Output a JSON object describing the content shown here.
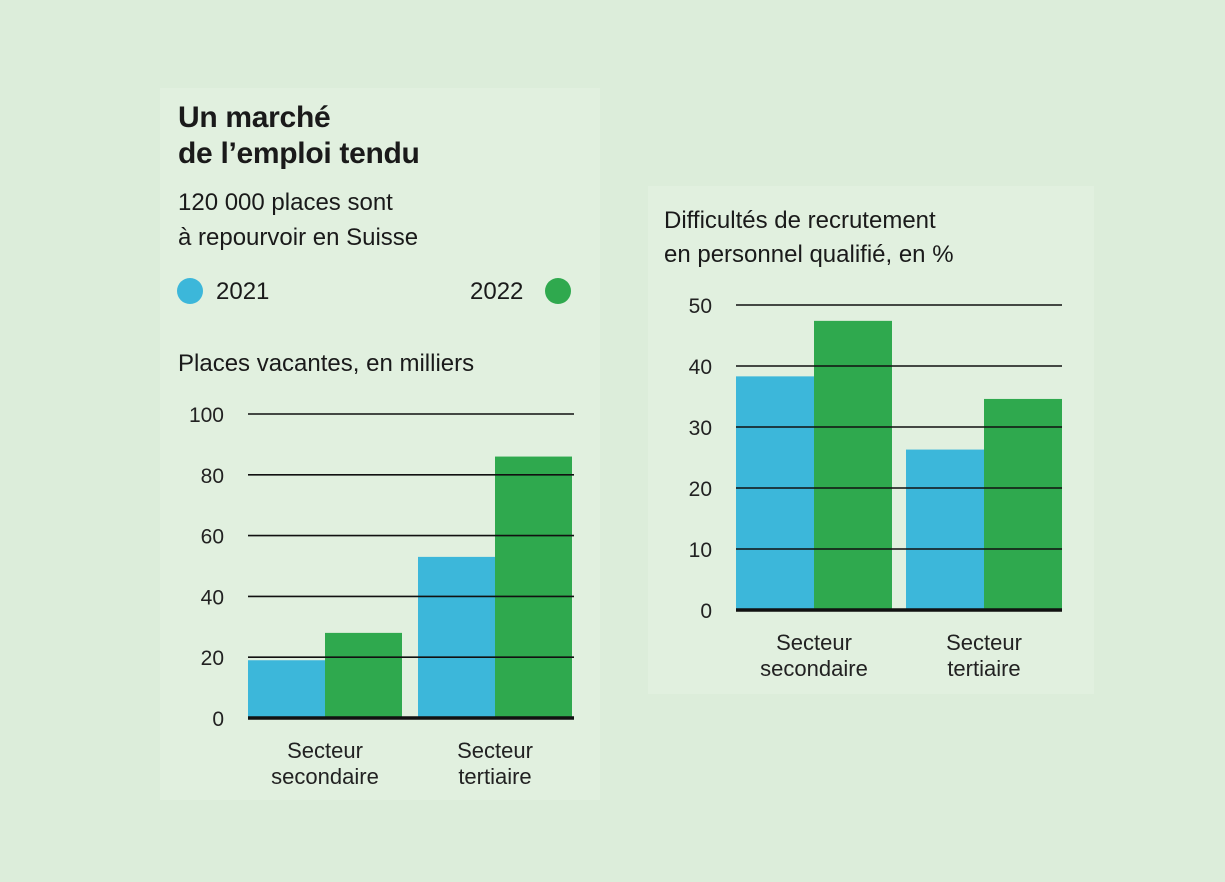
{
  "title": "Un marché de l’emploi tendu",
  "title_lines": [
    "Un marché",
    "de l’emploi tendu"
  ],
  "subtitle_lines": [
    "120 000 places sont",
    "à repourvoir en Suisse"
  ],
  "legend": [
    {
      "label": "2021",
      "color": "#3cb7da"
    },
    {
      "label": "2022",
      "color": "#2fa94e"
    }
  ],
  "chart_data": [
    {
      "type": "bar",
      "title": "Places vacantes, en milliers",
      "categories": [
        [
          "Secteur",
          "secondaire"
        ],
        [
          "Secteur",
          "tertiaire"
        ]
      ],
      "series": [
        {
          "name": "2021",
          "values": [
            19,
            53
          ],
          "color": "#3cb7da"
        },
        {
          "name": "2022",
          "values": [
            28,
            86
          ],
          "color": "#2fa94e"
        }
      ],
      "ylim": [
        0,
        100
      ],
      "yticks": [
        0,
        20,
        40,
        60,
        80,
        100
      ],
      "grid": true,
      "legend": "top"
    },
    {
      "type": "bar",
      "title": "Difficultés de recrutement en personnel qualifié, en %",
      "title_lines": [
        "Difficultés de recrutement",
        "en personnel qualifié, en %"
      ],
      "categories": [
        [
          "Secteur",
          "secondaire"
        ],
        [
          "Secteur",
          "tertiaire"
        ]
      ],
      "series": [
        {
          "name": "2021",
          "values": [
            38.3,
            26.3
          ],
          "color": "#3cb7da"
        },
        {
          "name": "2022",
          "values": [
            47.4,
            34.6
          ],
          "color": "#2fa94e"
        }
      ],
      "ylim": [
        0,
        50
      ],
      "yticks": [
        0,
        10,
        20,
        30,
        40,
        50
      ],
      "grid": true
    }
  ]
}
